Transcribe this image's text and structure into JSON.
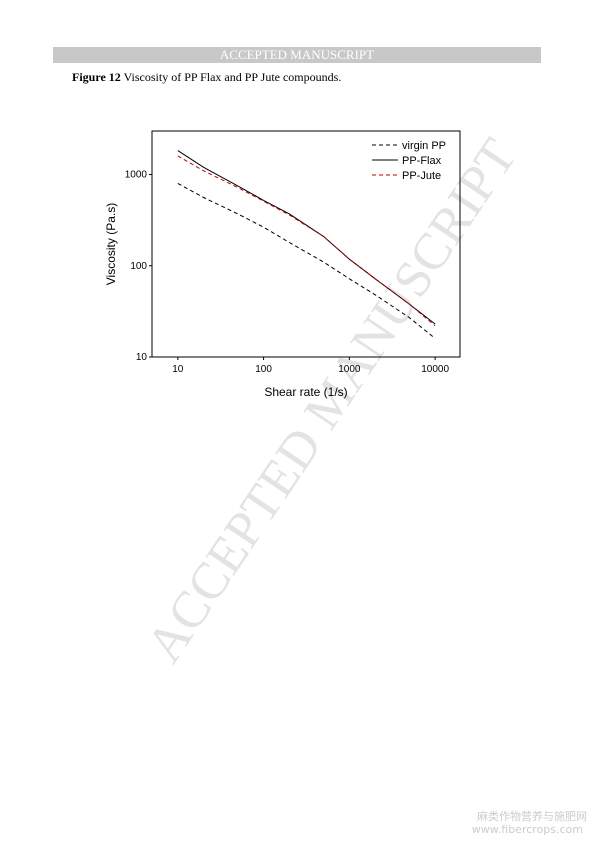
{
  "header": "ACCEPTED MANUSCRIPT",
  "caption": {
    "label": "Figure 12",
    "text": "Viscosity of PP Flax and PP Jute compounds."
  },
  "watermark": "ACCEPTED MANUSCRIPT",
  "footer": {
    "site_name": "麻类作物营养与施肥网",
    "url": "www.fibercrops.com"
  },
  "chart_data": {
    "type": "line",
    "xlabel": "Shear rate (1/s)",
    "ylabel": "Viscosity (Pa.s)",
    "xscale": "log",
    "yscale": "log",
    "xlim": [
      5,
      19500
    ],
    "ylim": [
      10,
      3000
    ],
    "xticks": [
      10,
      100,
      1000,
      10000
    ],
    "yticks": [
      10,
      100,
      1000
    ],
    "legend": "upper right",
    "x": [
      10,
      20,
      50,
      100,
      200,
      500,
      1000,
      2000,
      5000,
      10000
    ],
    "series": [
      {
        "name": "virgin PP",
        "color": "#000000",
        "dash": true,
        "values": [
          800,
          560,
          370,
          265,
          180,
          110,
          72,
          48,
          27,
          16
        ]
      },
      {
        "name": "PP-Flax",
        "color": "#000000",
        "dash": false,
        "values": [
          1830,
          1200,
          750,
          520,
          370,
          210,
          118,
          72,
          38,
          23
        ]
      },
      {
        "name": "PP-Jute",
        "color": "#c00000",
        "dash": true,
        "values": [
          1600,
          1100,
          720,
          510,
          360,
          210,
          118,
          72,
          38,
          22
        ]
      }
    ]
  }
}
